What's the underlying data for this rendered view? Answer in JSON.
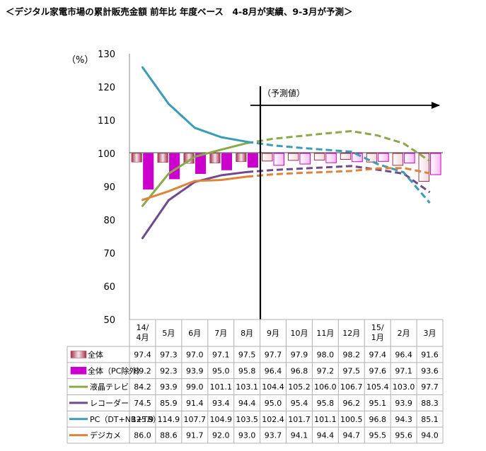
{
  "chart_data": {
    "type": "bar",
    "title": "＜デジタル家電市場の累計販売金額 前年比 年度ベース　4-8月が実績、9-3月が予測＞",
    "ylabel": "（%）",
    "ylim": [
      50,
      130
    ],
    "yticks": [
      50,
      60,
      70,
      80,
      90,
      100,
      110,
      120,
      130
    ],
    "baseline": 100,
    "grid": false,
    "legend_position": "table-below",
    "categories": [
      "14/\n4月",
      "5月",
      "6月",
      "7月",
      "8月",
      "9月",
      "10月",
      "11月",
      "12月",
      "15/\n1月",
      "2月",
      "3月"
    ],
    "actual_count": 5,
    "forecast_label": "（予測値）",
    "series": [
      {
        "name": "全体",
        "kind": "bar",
        "color": "#c0506a",
        "values": [
          97.4,
          97.3,
          97.0,
          97.1,
          97.5,
          97.7,
          97.9,
          98.0,
          98.2,
          97.4,
          96.4,
          91.6
        ]
      },
      {
        "name": "全体（PC除外）",
        "kind": "bar",
        "color": "#cc00cc",
        "values": [
          89.2,
          92.3,
          93.9,
          95.0,
          95.8,
          96.4,
          96.8,
          97.2,
          97.5,
          97.6,
          97.1,
          93.6
        ]
      },
      {
        "name": "液晶テレビ",
        "kind": "line",
        "color": "#8aaa4a",
        "values": [
          84.2,
          93.9,
          99.0,
          101.1,
          103.1,
          104.4,
          105.2,
          106.0,
          106.7,
          105.4,
          103.0,
          97.7
        ]
      },
      {
        "name": "レコーダー",
        "kind": "line",
        "color": "#6f4a8e",
        "values": [
          74.5,
          85.9,
          91.4,
          93.4,
          94.4,
          95.0,
          95.4,
          95.8,
          96.2,
          95.1,
          93.9,
          88.3
        ]
      },
      {
        "name": "PC（DT+NB+TB）",
        "kind": "line",
        "color": "#3b9cb6",
        "values": [
          125.9,
          114.9,
          107.7,
          104.9,
          103.5,
          102.4,
          101.7,
          101.1,
          100.5,
          96.8,
          94.3,
          85.1
        ]
      },
      {
        "name": "デジカメ",
        "kind": "line",
        "color": "#e0833a",
        "values": [
          86.0,
          88.6,
          91.7,
          92.0,
          93.0,
          93.7,
          94.1,
          94.4,
          94.7,
          95.5,
          95.6,
          94.0
        ]
      }
    ]
  }
}
